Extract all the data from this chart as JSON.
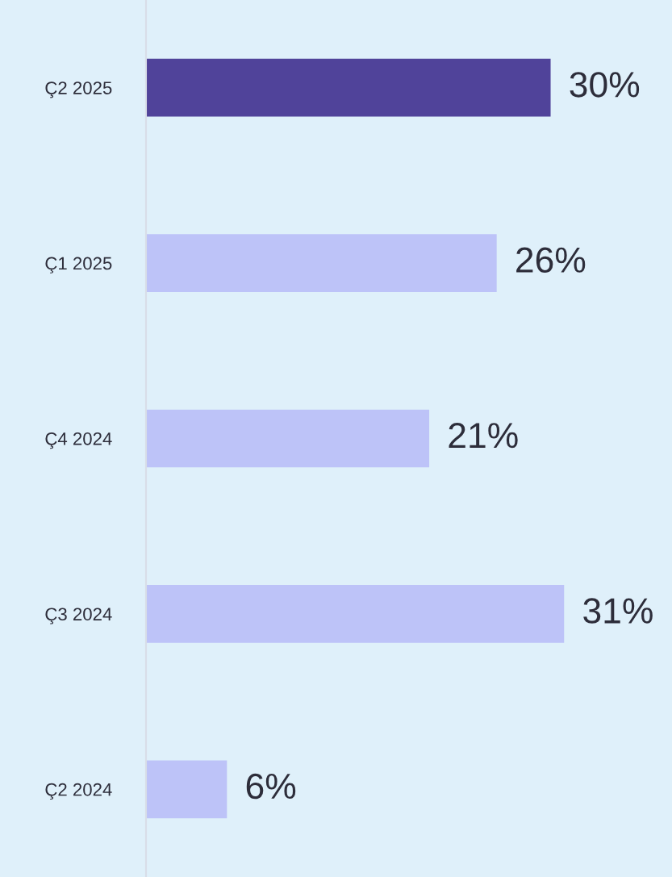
{
  "chart_data": {
    "type": "bar",
    "orientation": "horizontal",
    "categories": [
      "Ç2 2025",
      "Ç1 2025",
      "Ç4 2024",
      "Ç3 2024",
      "Ç2 2024"
    ],
    "values": [
      30,
      26,
      21,
      31,
      6
    ],
    "colors": [
      "#50439a",
      "#bdc3f8",
      "#bdc3f8",
      "#bdc3f8",
      "#bdc3f8"
    ],
    "value_labels": [
      "30%",
      "26%",
      "21%",
      "31%",
      "6%"
    ],
    "xlim": [
      0,
      39
    ],
    "grid": false,
    "legend": false
  }
}
